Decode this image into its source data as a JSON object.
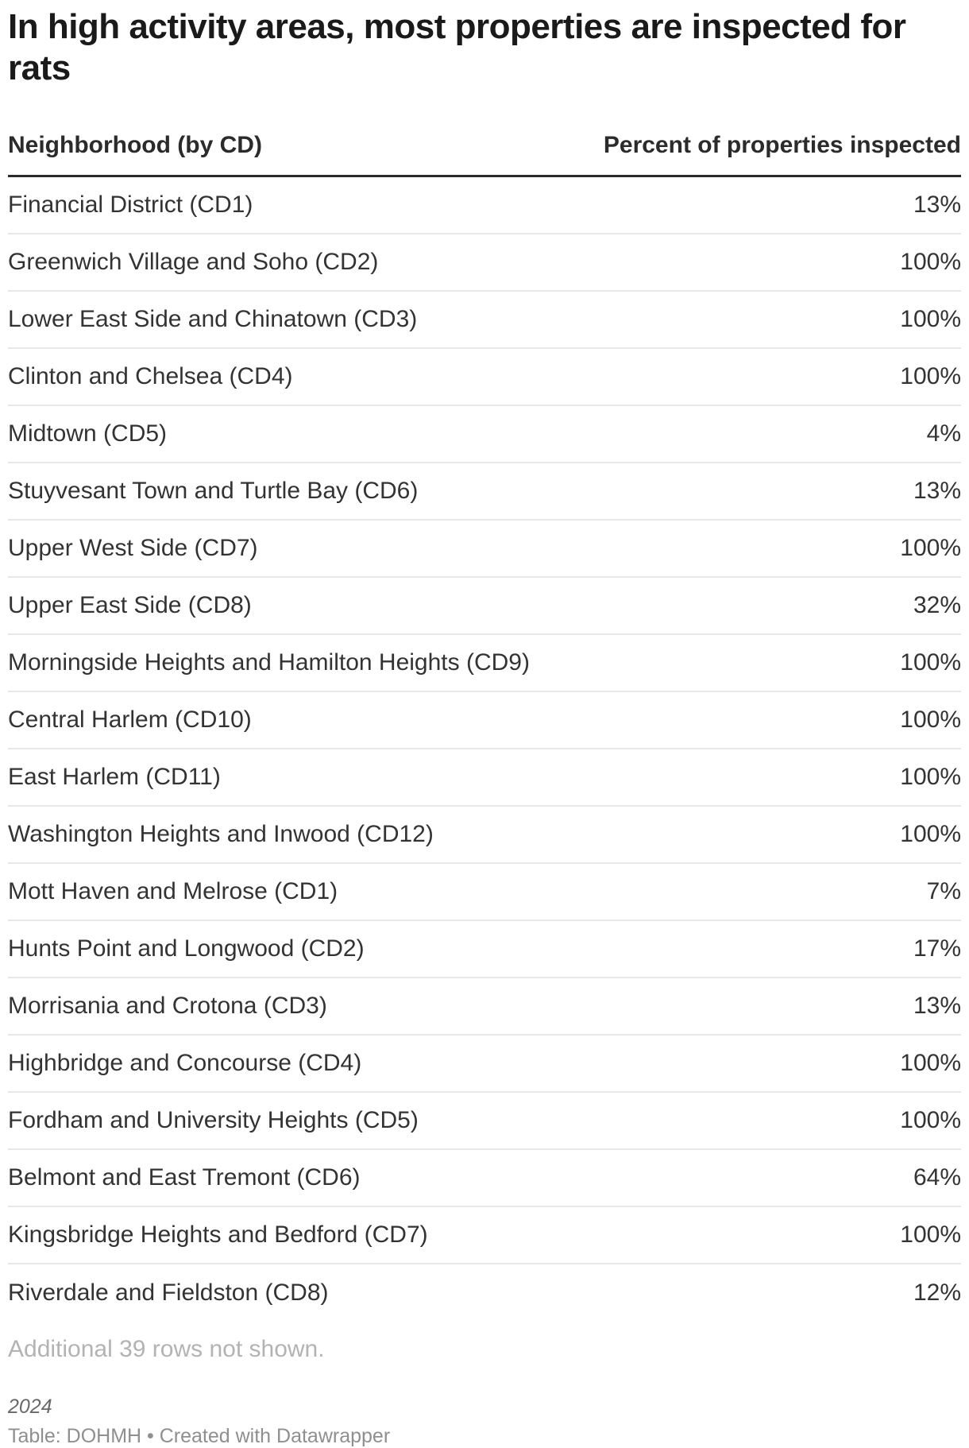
{
  "chart_data": {
    "type": "table",
    "title": "In high activity areas, most properties are inspected for rats",
    "columns": [
      "Neighborhood (by CD)",
      "Percent of properties inspected"
    ],
    "rows": [
      {
        "neighborhood": "Financial District (CD1)",
        "percent_label": "13%",
        "percent_value": 13
      },
      {
        "neighborhood": "Greenwich Village and Soho (CD2)",
        "percent_label": "100%",
        "percent_value": 100
      },
      {
        "neighborhood": "Lower East Side and Chinatown (CD3)",
        "percent_label": "100%",
        "percent_value": 100
      },
      {
        "neighborhood": "Clinton and Chelsea (CD4)",
        "percent_label": "100%",
        "percent_value": 100
      },
      {
        "neighborhood": "Midtown (CD5)",
        "percent_label": "4%",
        "percent_value": 4
      },
      {
        "neighborhood": "Stuyvesant Town and Turtle Bay (CD6)",
        "percent_label": "13%",
        "percent_value": 13
      },
      {
        "neighborhood": "Upper West Side (CD7)",
        "percent_label": "100%",
        "percent_value": 100
      },
      {
        "neighborhood": "Upper East Side (CD8)",
        "percent_label": "32%",
        "percent_value": 32
      },
      {
        "neighborhood": "Morningside Heights and Hamilton Heights (CD9)",
        "percent_label": "100%",
        "percent_value": 100
      },
      {
        "neighborhood": "Central Harlem (CD10)",
        "percent_label": "100%",
        "percent_value": 100
      },
      {
        "neighborhood": "East Harlem (CD11)",
        "percent_label": "100%",
        "percent_value": 100
      },
      {
        "neighborhood": "Washington Heights and Inwood (CD12)",
        "percent_label": "100%",
        "percent_value": 100
      },
      {
        "neighborhood": "Mott Haven and Melrose (CD1)",
        "percent_label": "7%",
        "percent_value": 7
      },
      {
        "neighborhood": "Hunts Point and Longwood (CD2)",
        "percent_label": "17%",
        "percent_value": 17
      },
      {
        "neighborhood": "Morrisania and Crotona (CD3)",
        "percent_label": "13%",
        "percent_value": 13
      },
      {
        "neighborhood": "Highbridge and Concourse (CD4)",
        "percent_label": "100%",
        "percent_value": 100
      },
      {
        "neighborhood": "Fordham and University Heights (CD5)",
        "percent_label": "100%",
        "percent_value": 100
      },
      {
        "neighborhood": "Belmont and East Tremont (CD6)",
        "percent_label": "64%",
        "percent_value": 64
      },
      {
        "neighborhood": "Kingsbridge Heights and Bedford (CD7)",
        "percent_label": "100%",
        "percent_value": 100
      },
      {
        "neighborhood": "Riverdale and Fieldston (CD8)",
        "percent_label": "12%",
        "percent_value": 12
      }
    ],
    "note": "Additional 39 rows not shown.",
    "layout_hints": {
      "value_alignment": "right",
      "grid": "horizontal-separators-only"
    }
  },
  "footer": {
    "year": "2024",
    "attribution": "Table: DOHMH • Created with Datawrapper"
  },
  "colors": {
    "background": "#ffffff",
    "title_text": "#1a1a1a",
    "header_text": "#2b2b2b",
    "header_border": "#2b2b2b",
    "row_text": "#333333",
    "row_separator": "#e8e8e8",
    "note_text": "#b3b3b3",
    "year_text": "#696969",
    "attribution_text": "#8f8f8f"
  }
}
